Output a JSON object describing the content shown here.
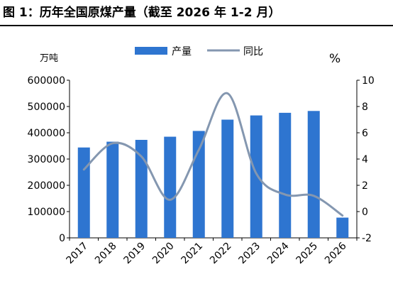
{
  "title": "图 1：历年全国原煤产量（截至 2026 年 1-2 月）",
  "chart_data": {
    "type": "bar+line",
    "categories": [
      "2017",
      "2018",
      "2019",
      "2020",
      "2021",
      "2022",
      "2023",
      "2024",
      "2025",
      "2026"
    ],
    "series": [
      {
        "name": "产量",
        "type": "bar",
        "axis": "left",
        "color": "#2e75d0",
        "values": [
          344000,
          366000,
          373000,
          385000,
          407000,
          450000,
          466000,
          476000,
          483000,
          77000
        ]
      },
      {
        "name": "同比",
        "type": "line",
        "axis": "right",
        "color": "#8497b0",
        "values": [
          3.2,
          5.2,
          4.2,
          0.9,
          4.7,
          9.0,
          2.9,
          1.3,
          1.2,
          -0.3
        ]
      }
    ],
    "y_left": {
      "unit_label": "万吨",
      "min": 0,
      "max": 600000,
      "ticks": [
        "0",
        "100000",
        "200000",
        "300000",
        "400000",
        "500000",
        "600000"
      ]
    },
    "y_right": {
      "unit_label": "%",
      "min": -2,
      "max": 10,
      "ticks": [
        "-2",
        "0",
        "2",
        "4",
        "6",
        "8",
        "10"
      ]
    },
    "legend_position": "top-center",
    "grid": false
  }
}
